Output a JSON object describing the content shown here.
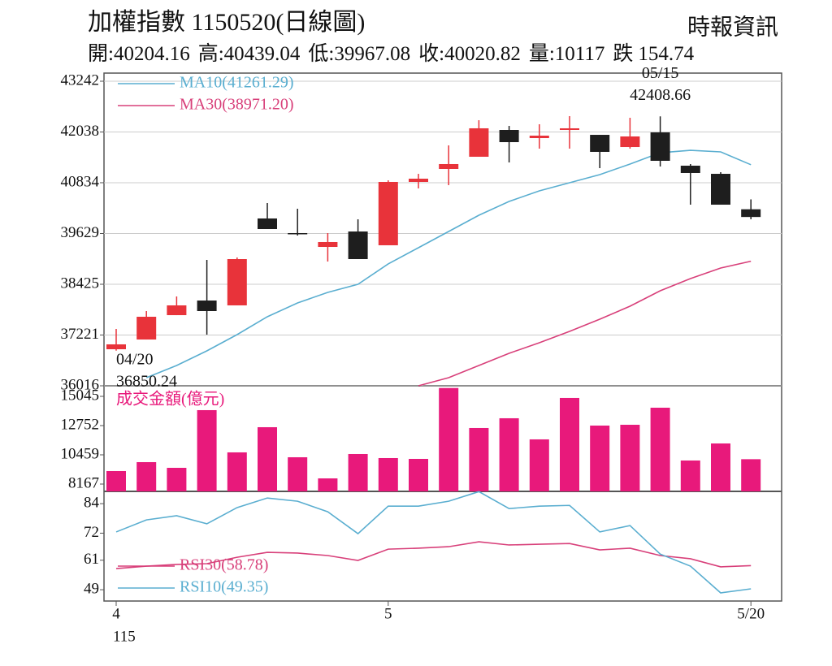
{
  "header": {
    "title": "加權指數 1150520(日線圖)",
    "source": "時報資訊",
    "stats": [
      {
        "label": "開:",
        "value": 40204.16
      },
      {
        "label": "高:",
        "value": 40439.04
      },
      {
        "label": "低:",
        "value": 39967.08
      },
      {
        "label": "收:",
        "value": 40020.82
      },
      {
        "label": "量:",
        "value": 10117
      },
      {
        "label": "跌",
        "value": 154.74
      }
    ]
  },
  "chart_data": [
    {
      "type": "candlestick",
      "ylim": [
        36016,
        43435
      ],
      "yticks": [
        36016,
        37221,
        38425,
        39629,
        40834,
        42038,
        43242
      ],
      "grid": true,
      "up_color": "#e8333a",
      "down_color": "#1e1e1e",
      "open": [
        36883,
        37114,
        37692,
        38039,
        37924,
        39986,
        39639,
        39311,
        39677,
        39350,
        40853,
        41161,
        41450,
        42086,
        41893,
        42086,
        41970,
        41681,
        42028,
        41238,
        41045,
        40204.16
      ],
      "high": [
        37365,
        37789,
        38136,
        39003,
        39061,
        40352,
        40217,
        39639,
        39966,
        40891,
        41045,
        41720,
        42317,
        42182,
        42221,
        42414,
        41970,
        42375,
        42408.66,
        41277,
        41084,
        40439.04
      ],
      "low": [
        36850.24,
        37114,
        37692,
        37230,
        37924,
        39735,
        39581,
        38964,
        39022,
        39350,
        40699,
        40776,
        41450,
        41315,
        41643,
        41643,
        41180,
        41643,
        41219,
        40313,
        40313,
        39967.08
      ],
      "close": [
        36999,
        37654,
        37924,
        37789,
        39022,
        39735,
        39620,
        39427,
        39022,
        40853,
        40930,
        41277,
        42125,
        41797,
        41951,
        42125,
        41566,
        41932,
        41354,
        41065,
        40313,
        40020.82
      ],
      "series": [
        {
          "name": "MA10(41261.29)",
          "color": "#5aaed0",
          "values": [
            null,
            36209,
            36498,
            36845,
            37230,
            37654,
            37982,
            38232,
            38425,
            38907,
            39292,
            39677,
            40063,
            40390,
            40641,
            40834,
            41026,
            41277,
            41546,
            41604,
            41566,
            41261.29
          ]
        },
        {
          "name": "MA30(38971.20)",
          "color": "#d8407a",
          "values": [
            null,
            null,
            null,
            null,
            null,
            null,
            null,
            null,
            null,
            null,
            36016,
            36209,
            36498,
            36787,
            37037,
            37307,
            37596,
            37904,
            38271,
            38560,
            38810,
            38971.2
          ]
        }
      ],
      "annotations": [
        {
          "label": "04/20",
          "value": 36850.24
        },
        {
          "label": "05/15",
          "value": 42408.66
        }
      ]
    },
    {
      "type": "bar",
      "title": "成交金額(億元)",
      "color": "#e8197b",
      "ylim": [
        7594,
        15873
      ],
      "yticks": [
        8167,
        10459,
        12752,
        15045
      ],
      "values": [
        9187,
        9887,
        9441,
        13964,
        10652,
        12626,
        10269,
        8613,
        10524,
        10206,
        10142,
        15700,
        12563,
        13327,
        11671,
        14920,
        12754,
        12817,
        14155,
        10015,
        11352,
        10117
      ]
    },
    {
      "type": "line",
      "ylim": [
        44.4,
        89
      ],
      "yticks": [
        49,
        61,
        72,
        84
      ],
      "categories": [
        "4",
        null,
        null,
        null,
        null,
        null,
        null,
        null,
        null,
        "5",
        null,
        null,
        null,
        null,
        null,
        null,
        null,
        null,
        null,
        null,
        null,
        "5/20"
      ],
      "x_sublabel": "115",
      "series": [
        {
          "name": "RSI30(58.78)",
          "color": "#d8407a",
          "values": [
            57.6,
            58.6,
            59.3,
            59.6,
            62.2,
            64.2,
            63.9,
            62.9,
            60.9,
            65.5,
            65.9,
            66.5,
            68.5,
            67.2,
            67.5,
            67.8,
            65.2,
            65.9,
            62.9,
            61.6,
            58.3,
            58.78
          ]
        },
        {
          "name": "RSI10(49.35)",
          "color": "#5aaed0",
          "values": [
            72.5,
            77.4,
            79.1,
            75.8,
            82.4,
            86.3,
            85.0,
            80.7,
            71.8,
            83.0,
            83.0,
            85.0,
            88.9,
            82.0,
            83.0,
            83.3,
            72.5,
            75.1,
            63.5,
            58.6,
            47.7,
            49.35
          ]
        }
      ]
    }
  ]
}
